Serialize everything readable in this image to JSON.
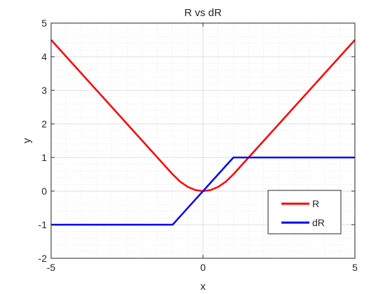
{
  "chart_data": {
    "type": "line",
    "title": "R vs dR",
    "xlabel": "x",
    "ylabel": "y",
    "xlim": [
      -5,
      5
    ],
    "ylim": [
      -2,
      5
    ],
    "xticks": [
      -5,
      0,
      5
    ],
    "xtick_labels": [
      "-5",
      "0",
      "5"
    ],
    "yticks": [
      -2,
      -1,
      0,
      1,
      2,
      3,
      4,
      5
    ],
    "ytick_labels": [
      "-2",
      "-1",
      "0",
      "1",
      "2",
      "3",
      "4",
      "5"
    ],
    "grid": true,
    "minor_grid": true,
    "legend_position": "bottom-right",
    "series": [
      {
        "name": "R",
        "color": "#ff0000",
        "x": [
          -5,
          -4,
          -3,
          -2,
          -1.5,
          -1,
          -0.75,
          -0.5,
          -0.25,
          0,
          0.25,
          0.5,
          0.75,
          1,
          1.5,
          2,
          3,
          4,
          5
        ],
        "values": [
          4.5,
          3.5,
          2.5,
          1.5,
          1.0,
          0.5,
          0.28,
          0.125,
          0.031,
          0,
          0.031,
          0.125,
          0.28,
          0.5,
          1.0,
          1.5,
          2.5,
          3.5,
          4.5
        ]
      },
      {
        "name": "dR",
        "color": "#0000ff",
        "x": [
          -5,
          -1,
          1,
          5
        ],
        "values": [
          -1,
          -1,
          1,
          1
        ]
      }
    ]
  }
}
